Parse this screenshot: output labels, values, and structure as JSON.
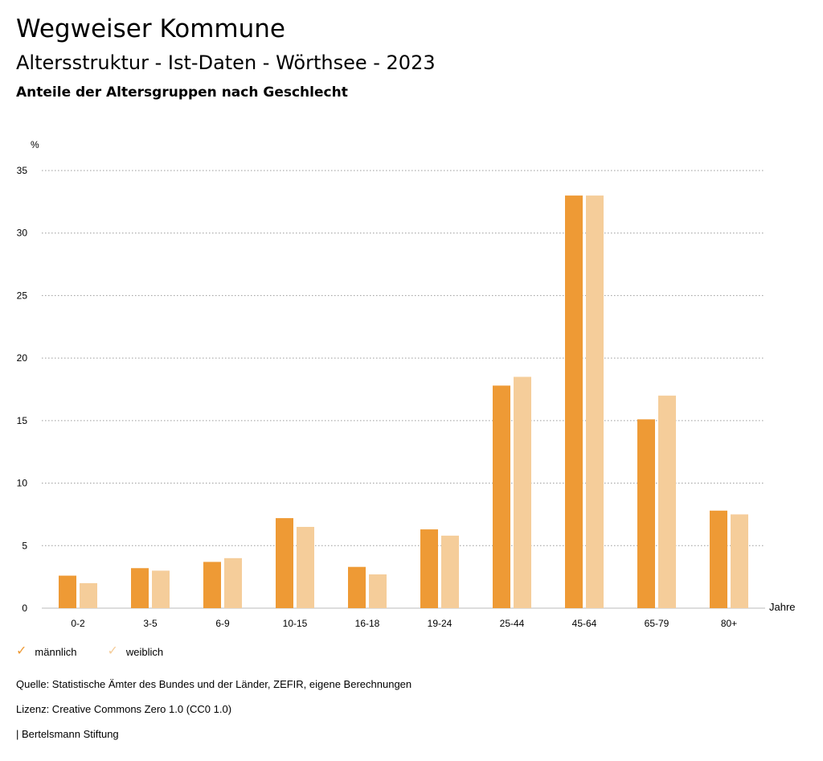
{
  "header": {
    "title": "Wegweiser Kommune",
    "subtitle": "Altersstruktur - Ist-Daten - Wörthsee - 2023",
    "chart_title": "Anteile der Altersgruppen nach Geschlecht"
  },
  "chart_data": {
    "type": "bar",
    "title": "Anteile der Altersgruppen nach Geschlecht",
    "ylabel": "%",
    "xlabel": "Jahre",
    "ylim": [
      0,
      35
    ],
    "yticks": [
      0,
      5,
      10,
      15,
      20,
      25,
      30,
      35
    ],
    "grid": true,
    "legend_position": "bottom-left",
    "categories": [
      "0-2",
      "3-5",
      "6-9",
      "10-15",
      "16-18",
      "19-24",
      "25-44",
      "45-64",
      "65-79",
      "80+"
    ],
    "series": [
      {
        "name": "männlich",
        "color": "#ee9a35",
        "values": [
          2.6,
          3.2,
          3.7,
          7.2,
          3.3,
          6.3,
          17.8,
          33.0,
          15.1,
          7.8
        ]
      },
      {
        "name": "weiblich",
        "color": "#f5cd9a",
        "values": [
          2.0,
          3.0,
          4.0,
          6.5,
          2.7,
          5.8,
          18.5,
          33.0,
          17.0,
          7.5
        ]
      }
    ]
  },
  "footer": {
    "source": "Quelle: Statistische Ämter des Bundes und der Länder, ZEFIR, eigene Berechnungen",
    "license": "Lizenz: Creative Commons Zero 1.0 (CC0 1.0)",
    "publisher": "| Bertelsmann Stiftung"
  }
}
